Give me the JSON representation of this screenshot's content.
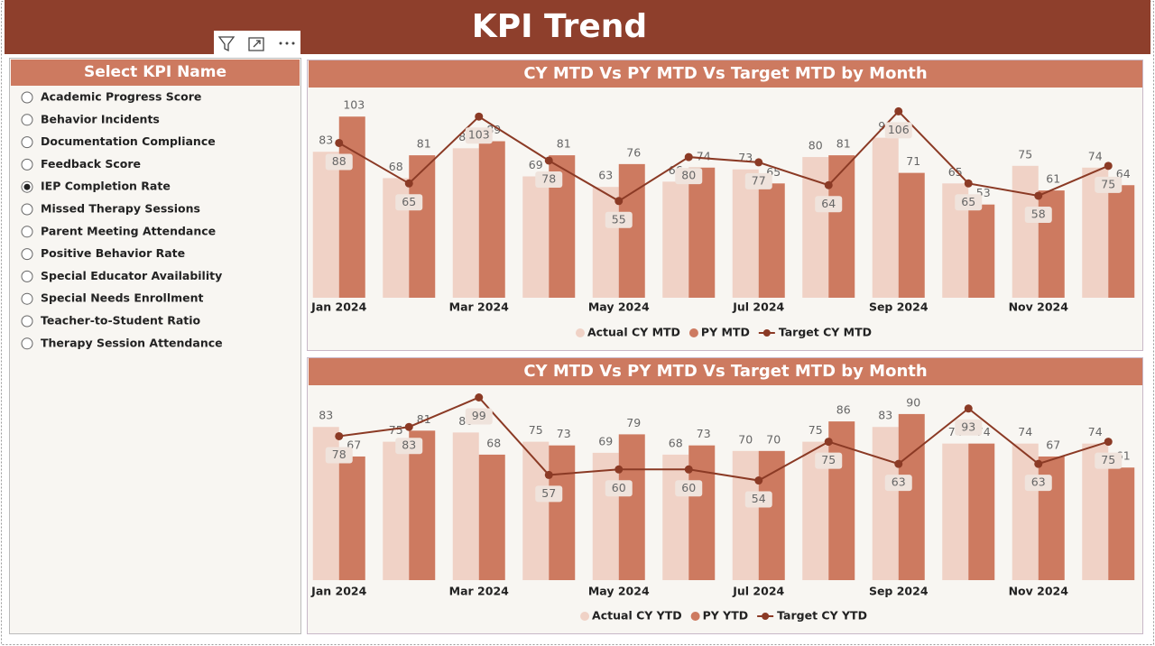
{
  "header": {
    "title": "KPI Trend"
  },
  "slicer": {
    "title": "Select KPI Name",
    "selected_index": 4,
    "options": [
      "Academic Progress Score",
      "Behavior Incidents",
      "Documentation Compliance",
      "Feedback Score",
      "IEP Completion Rate",
      "Missed Therapy Sessions",
      "Parent Meeting Attendance",
      "Positive Behavior Rate",
      "Special Educator Availability",
      "Special Needs Enrollment",
      "Teacher-to-Student Ratio",
      "Therapy Session Attendance"
    ]
  },
  "chart_data": [
    {
      "type": "combo",
      "title": "CY MTD Vs PY MTD Vs Target MTD by Month",
      "categories": [
        "Jan 2024",
        null,
        "Mar 2024",
        null,
        "May 2024",
        null,
        "Jul 2024",
        null,
        "Sep 2024",
        null,
        "Nov 2024",
        null
      ],
      "series": [
        {
          "name": "Actual CY MTD",
          "type": "bar",
          "color": "#f0d2c6",
          "values": [
            83,
            68,
            85,
            69,
            63,
            66,
            73,
            80,
            91,
            65,
            75,
            74
          ]
        },
        {
          "name": "PY MTD",
          "type": "bar",
          "color": "#cd7a60",
          "values": [
            103,
            81,
            89,
            81,
            76,
            74,
            65,
            81,
            71,
            53,
            61,
            64
          ]
        },
        {
          "name": "Target CY MTD",
          "type": "line",
          "color": "#8b3a25",
          "values": [
            88,
            65,
            103,
            78,
            55,
            80,
            77,
            64,
            106,
            65,
            58,
            75
          ]
        }
      ],
      "ylim": [
        0,
        118
      ]
    },
    {
      "type": "combo",
      "title": "CY MTD Vs PY MTD Vs Target MTD by Month",
      "categories": [
        "Jan 2024",
        null,
        "Mar 2024",
        null,
        "May 2024",
        null,
        "Jul 2024",
        null,
        "Sep 2024",
        null,
        "Nov 2024",
        null
      ],
      "series": [
        {
          "name": "Actual CY YTD",
          "type": "bar",
          "color": "#f0d2c6",
          "values": [
            83,
            75,
            80,
            75,
            69,
            68,
            70,
            75,
            83,
            74,
            74,
            74
          ]
        },
        {
          "name": "PY YTD",
          "type": "bar",
          "color": "#cd7a60",
          "values": [
            67,
            81,
            68,
            73,
            79,
            73,
            70,
            86,
            90,
            74,
            67,
            61
          ]
        },
        {
          "name": "Target CY YTD",
          "type": "line",
          "color": "#8b3a25",
          "values": [
            78,
            83,
            99,
            57,
            60,
            60,
            54,
            75,
            63,
            93,
            63,
            75
          ]
        }
      ],
      "ylim": [
        0,
        110
      ]
    }
  ]
}
